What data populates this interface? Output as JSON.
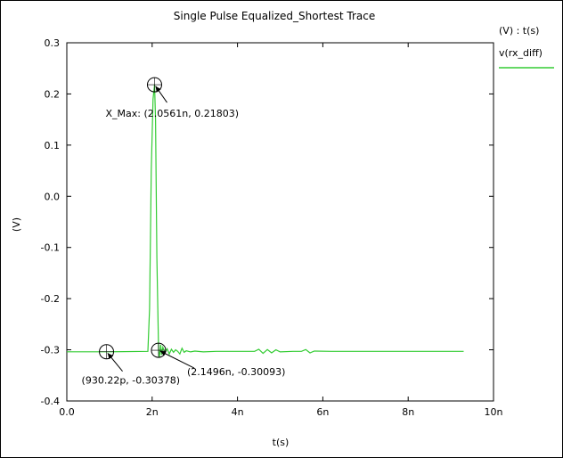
{
  "chart_data": {
    "type": "line",
    "title": "Single Pulse Equalized_Shortest Trace",
    "xlabel": "t(s)",
    "ylabel": "(V)",
    "xlim": [
      0,
      1e-08
    ],
    "ylim": [
      -0.4,
      0.3
    ],
    "x_ticks": [
      {
        "value": 0,
        "label": "0.0"
      },
      {
        "value": 2e-09,
        "label": "2n"
      },
      {
        "value": 4e-09,
        "label": "4n"
      },
      {
        "value": 6e-09,
        "label": "6n"
      },
      {
        "value": 8e-09,
        "label": "8n"
      },
      {
        "value": 1e-08,
        "label": "10n"
      }
    ],
    "y_ticks": [
      {
        "value": 0.3,
        "label": "0.3"
      },
      {
        "value": 0.2,
        "label": "0.2"
      },
      {
        "value": 0.1,
        "label": "0.1"
      },
      {
        "value": 0.0,
        "label": "0.0"
      },
      {
        "value": -0.1,
        "label": "-0.1"
      },
      {
        "value": -0.2,
        "label": "-0.2"
      },
      {
        "value": -0.3,
        "label": "-0.3"
      },
      {
        "value": -0.4,
        "label": "-0.4"
      }
    ],
    "grid": false,
    "legend": {
      "placement": "top-right",
      "header": "(V) : t(s)",
      "entries": [
        {
          "name": "v(rx_diff)",
          "color": "#33cc33"
        }
      ]
    },
    "series": [
      {
        "name": "v(rx_diff)",
        "color": "#33cc33",
        "x": [
          0,
          1e-09,
          1.9e-09,
          1.94e-09,
          1.98e-09,
          2.02e-09,
          2.0561e-09,
          2.08e-09,
          2.11e-09,
          2.1496e-09,
          2.17e-09,
          2.2e-09,
          2.22e-09,
          2.25e-09,
          2.3e-09,
          2.35e-09,
          2.4e-09,
          2.45e-09,
          2.5e-09,
          2.55e-09,
          2.6e-09,
          2.65e-09,
          2.7e-09,
          2.75e-09,
          2.8e-09,
          2.9e-09,
          3e-09,
          3.2e-09,
          3.5e-09,
          4e-09,
          4.4e-09,
          4.5e-09,
          4.6e-09,
          4.7e-09,
          4.8e-09,
          4.9e-09,
          5e-09,
          5.3e-09,
          5.5e-09,
          5.6e-09,
          5.7e-09,
          5.8e-09,
          6.2e-09,
          7e-09,
          8e-09,
          9.3e-09
        ],
        "y": [
          -0.3038,
          -0.3038,
          -0.303,
          -0.22,
          0.05,
          0.19,
          0.21803,
          0.15,
          -0.12,
          -0.30093,
          -0.315,
          -0.29,
          -0.31,
          -0.295,
          -0.306,
          -0.298,
          -0.308,
          -0.299,
          -0.305,
          -0.3,
          -0.303,
          -0.308,
          -0.297,
          -0.305,
          -0.302,
          -0.304,
          -0.3025,
          -0.304,
          -0.303,
          -0.303,
          -0.303,
          -0.299,
          -0.307,
          -0.2995,
          -0.306,
          -0.3,
          -0.304,
          -0.303,
          -0.303,
          -0.2995,
          -0.306,
          -0.3025,
          -0.303,
          -0.303,
          -0.303,
          -0.303
        ]
      }
    ],
    "annotations": [
      {
        "text": "X_Max: (2.0561n, 0.21803)",
        "x": 2.0561e-09,
        "y": 0.21803
      },
      {
        "text": "(930.22p, -0.30378)",
        "x": 9.3022e-10,
        "y": -0.30378
      },
      {
        "text": "(2.1496n, -0.30093)",
        "x": 2.1496e-09,
        "y": -0.30093
      }
    ]
  }
}
